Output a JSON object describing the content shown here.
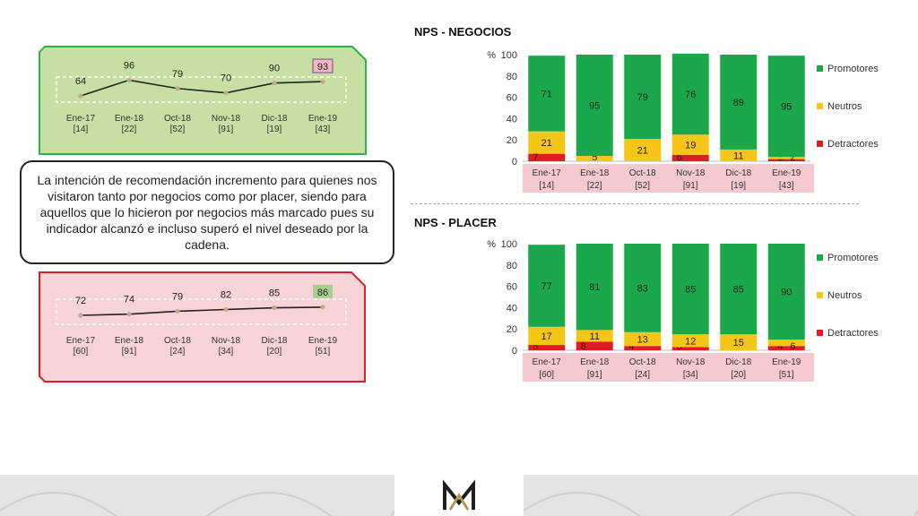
{
  "titles": {
    "negocios": "NPS - NEGOCIOS",
    "placer": "NPS - PLACER"
  },
  "callout_text": "La intención de recomendación incremento para quienes nos visitaron tanto por negocios como por placer, siendo para aquellos que lo hicieron por negocios más marcado pues su indicador alcanzó e incluso superó el nivel deseado por la cadena.",
  "colors": {
    "promotores": "#1aa84a",
    "neutros": "#f5c518",
    "detractores": "#e31b23",
    "green_box_fill": "#c6e0a4",
    "green_box_border": "#2db14b",
    "red_box_fill": "#f6d3d6",
    "red_box_border": "#e31b23",
    "axis_band": "#f4c9cf",
    "line": "#222222",
    "marker": "#c3ab86"
  },
  "chart_data": [
    {
      "id": "negocios-line",
      "type": "line",
      "categories": [
        "Ene-17",
        "Ene-18",
        "Oct-18",
        "Nov-18",
        "Dic-18",
        "Ene-19"
      ],
      "sublabels": [
        "[14]",
        "[22]",
        "[52]",
        "[91]",
        "[19]",
        "[43]"
      ],
      "values": [
        64,
        96,
        79,
        70,
        90,
        93
      ],
      "highlight_last": true
    },
    {
      "id": "placer-line",
      "type": "line",
      "categories": [
        "Ene-17",
        "Ene-18",
        "Oct-18",
        "Nov-18",
        "Dic-18",
        "Ene-19"
      ],
      "sublabels": [
        "[60]",
        "[91]",
        "[24]",
        "[34]",
        "[20]",
        "[51]"
      ],
      "values": [
        72,
        74,
        79,
        82,
        85,
        86
      ],
      "highlight_last": true
    },
    {
      "id": "negocios-bars",
      "type": "bar",
      "stacked": true,
      "title": "NPS - NEGOCIOS",
      "ylabel": "%",
      "ylim": [
        0,
        100
      ],
      "yticks": [
        0,
        20,
        40,
        60,
        80,
        100
      ],
      "categories": [
        "Ene-17",
        "Ene-18",
        "Oct-18",
        "Nov-18",
        "Dic-18",
        "Ene-19"
      ],
      "sublabels": [
        "[14]",
        "[22]",
        "[52]",
        "[91]",
        "[19]",
        "[43]"
      ],
      "series": [
        {
          "name": "Detractores",
          "values": [
            7,
            0,
            0,
            6,
            0,
            2
          ],
          "labels": [
            "7",
            "",
            "",
            "6",
            "",
            "2"
          ]
        },
        {
          "name": "Neutros",
          "values": [
            21,
            5,
            21,
            19,
            11,
            2
          ],
          "labels": [
            "21",
            "5",
            "21",
            "19",
            "11",
            "2"
          ]
        },
        {
          "name": "Promotores",
          "values": [
            71,
            95,
            79,
            76,
            89,
            95
          ],
          "labels": [
            "71",
            "95",
            "79",
            "76",
            "89",
            "95"
          ]
        }
      ],
      "legend": [
        "Promotores",
        "Neutros",
        "Detractores"
      ],
      "legend_position": "right"
    },
    {
      "id": "placer-bars",
      "type": "bar",
      "stacked": true,
      "title": "NPS - PLACER",
      "ylabel": "%",
      "ylim": [
        0,
        100
      ],
      "yticks": [
        0,
        20,
        40,
        60,
        80,
        100
      ],
      "categories": [
        "Ene-17",
        "Ene-18",
        "Oct-18",
        "Nov-18",
        "Dic-18",
        "Ene-19"
      ],
      "sublabels": [
        "[60]",
        "[91]",
        "[24]",
        "[34]",
        "[20]",
        "[51]"
      ],
      "series": [
        {
          "name": "Detractores",
          "values": [
            5,
            8,
            4,
            3,
            0,
            4
          ],
          "labels": [
            "5",
            "8",
            "4",
            "3",
            "",
            "4"
          ]
        },
        {
          "name": "Neutros",
          "values": [
            17,
            11,
            13,
            12,
            15,
            6
          ],
          "labels": [
            "17",
            "11",
            "13",
            "12",
            "15",
            "6"
          ]
        },
        {
          "name": "Promotores",
          "values": [
            77,
            81,
            83,
            85,
            85,
            90
          ],
          "labels": [
            "77",
            "81",
            "83",
            "85",
            "85",
            "90"
          ]
        }
      ],
      "legend": [
        "Promotores",
        "Neutros",
        "Detractores"
      ],
      "legend_position": "right"
    }
  ]
}
